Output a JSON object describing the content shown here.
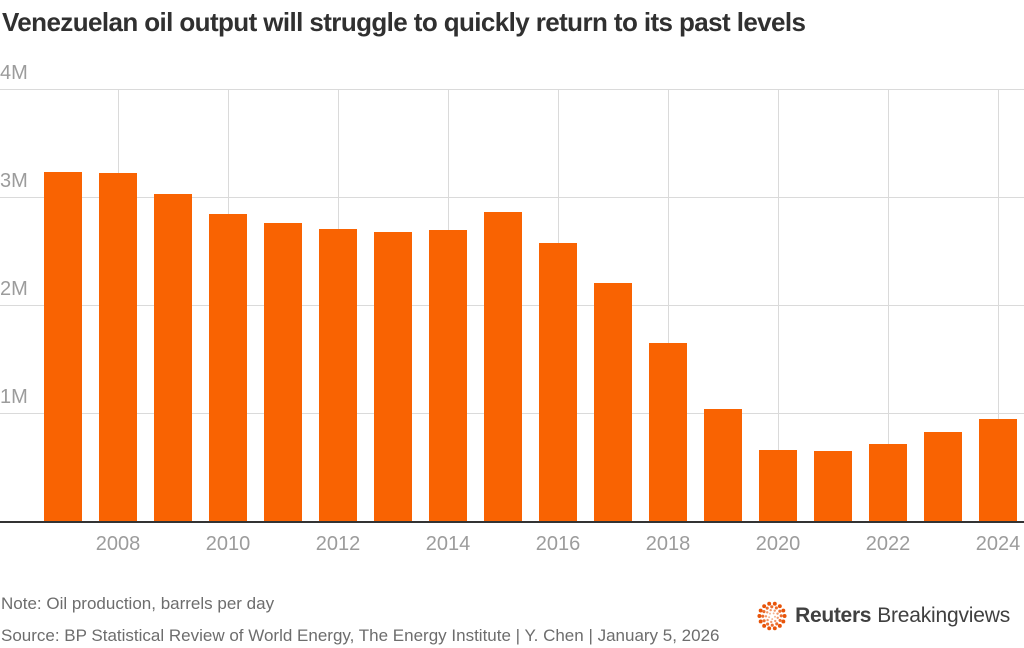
{
  "title": "Venezuelan oil output will struggle to quickly return to its past levels",
  "note": "Note: Oil production, barrels per day",
  "source": "Source: BP Statistical Review of World Energy, The Energy Institute | Y. Chen | January 5, 2026",
  "branding": {
    "reuters": "Reuters",
    "breakingviews": "Breakingviews",
    "orb_icon": "reuters-orb-icon",
    "orb_color": "#E8540A"
  },
  "colors": {
    "bar": "#F96302",
    "grid": "#DADADA",
    "axis_baseline": "#333333",
    "tick_label": "#9C9C9C",
    "footer_text": "#6D6D6D",
    "title_text": "#303030",
    "background": "#FFFFFF"
  },
  "chart_data": {
    "type": "bar",
    "title": "Venezuelan oil output will struggle to quickly return to its past levels",
    "xlabel": "",
    "ylabel": "Oil production, barrels per day",
    "x": [
      2007,
      2008,
      2009,
      2010,
      2011,
      2012,
      2013,
      2014,
      2015,
      2016,
      2017,
      2018,
      2019,
      2020,
      2021,
      2022,
      2023,
      2024
    ],
    "values": [
      3.23,
      3.22,
      3.03,
      2.84,
      2.76,
      2.7,
      2.68,
      2.69,
      2.86,
      2.57,
      2.2,
      1.65,
      1.04,
      0.66,
      0.65,
      0.71,
      0.82,
      0.94
    ],
    "unit": "million barrels per day",
    "ylim": [
      0,
      4
    ],
    "y_ticks": [
      {
        "value": 1,
        "label": "1M"
      },
      {
        "value": 2,
        "label": "2M"
      },
      {
        "value": 3,
        "label": "3M"
      },
      {
        "value": 4,
        "label": "4M"
      }
    ],
    "x_ticks": [
      2008,
      2010,
      2012,
      2014,
      2016,
      2018,
      2020,
      2022,
      2024
    ],
    "grid": true,
    "legend": false,
    "bar_color": "#F96302"
  }
}
